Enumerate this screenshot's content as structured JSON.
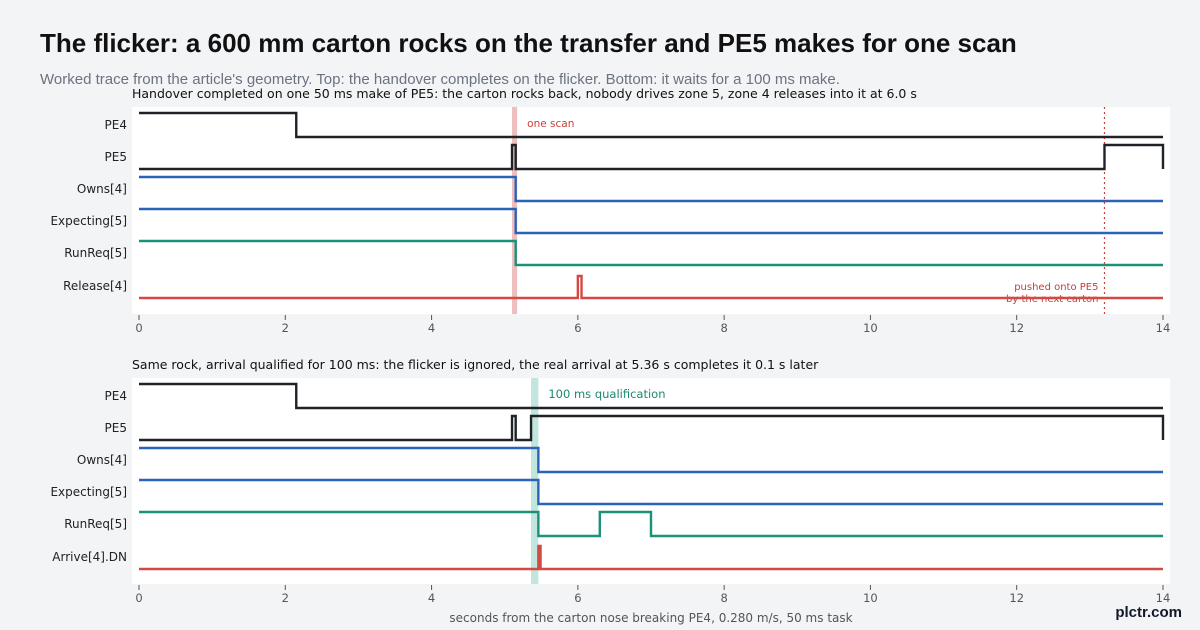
{
  "header": {
    "title": "The flicker: a 600 mm carton rocks on the transfer and PE5 makes for one scan",
    "subtitle": "Worked trace from the article's geometry. Top: the handover completes on the flicker. Bottom: it waits for a 100 ms make."
  },
  "colors": {
    "black": "#1f2328",
    "blue": "#2a64b8",
    "teal": "#1a9178",
    "red": "#d24a43",
    "scan_band": "#e8aaa8",
    "qual_band": "#8fd0c2",
    "annotation_red": "#c8403a",
    "annotation_teal": "#1a8a72"
  },
  "chart_data": [
    {
      "type": "timing",
      "title": "Handover completed on one 50 ms make of PE5: the carton rocks back, nobody drives zone 5, zone 4 releases into it at 6.0 s",
      "xlabel": "",
      "xlim": [
        0,
        14
      ],
      "xticks": [
        0,
        2,
        4,
        6,
        8,
        10,
        12,
        14
      ],
      "signals": [
        {
          "name": "PE4",
          "color": "black",
          "steps": [
            [
              0,
              1
            ],
            [
              2.15,
              0
            ]
          ]
        },
        {
          "name": "PE5",
          "color": "black",
          "steps": [
            [
              0,
              0
            ],
            [
              5.1,
              1
            ],
            [
              5.15,
              0
            ],
            [
              13.2,
              1
            ],
            [
              14,
              0
            ]
          ]
        },
        {
          "name": "Owns[4]",
          "color": "blue",
          "steps": [
            [
              0,
              1
            ],
            [
              5.15,
              0
            ]
          ]
        },
        {
          "name": "Expecting[5]",
          "color": "blue",
          "steps": [
            [
              0,
              1
            ],
            [
              5.15,
              0
            ]
          ]
        },
        {
          "name": "RunReq[5]",
          "color": "teal",
          "steps": [
            [
              0,
              1
            ],
            [
              5.15,
              0
            ]
          ]
        },
        {
          "name": "Release[4]",
          "color": "red",
          "steps": [
            [
              0,
              0
            ],
            [
              6.0,
              1
            ],
            [
              6.05,
              0
            ]
          ]
        }
      ],
      "band": {
        "x0": 5.1,
        "x1": 5.17,
        "label": "one scan"
      },
      "vline": {
        "x": 13.2,
        "label": [
          "pushed onto PE5",
          "by the next carton"
        ]
      }
    },
    {
      "type": "timing",
      "title": "Same rock, arrival qualified for 100 ms: the flicker is ignored, the real arrival at 5.36 s completes it 0.1 s later",
      "xlabel": "seconds from the carton nose breaking PE4, 0.280 m/s, 50 ms task",
      "xlim": [
        0,
        14
      ],
      "xticks": [
        0,
        2,
        4,
        6,
        8,
        10,
        12,
        14
      ],
      "signals": [
        {
          "name": "PE4",
          "color": "black",
          "steps": [
            [
              0,
              1
            ],
            [
              2.15,
              0
            ]
          ]
        },
        {
          "name": "PE5",
          "color": "black",
          "steps": [
            [
              0,
              0
            ],
            [
              5.1,
              1
            ],
            [
              5.15,
              0
            ],
            [
              5.36,
              1
            ],
            [
              14,
              0
            ]
          ]
        },
        {
          "name": "Owns[4]",
          "color": "blue",
          "steps": [
            [
              0,
              1
            ],
            [
              5.46,
              0
            ]
          ]
        },
        {
          "name": "Expecting[5]",
          "color": "blue",
          "steps": [
            [
              0,
              1
            ],
            [
              5.46,
              0
            ]
          ]
        },
        {
          "name": "RunReq[5]",
          "color": "teal",
          "steps": [
            [
              0,
              1
            ],
            [
              5.46,
              0
            ],
            [
              6.3,
              1
            ],
            [
              7.0,
              0
            ]
          ]
        },
        {
          "name": "Arrive[4].DN",
          "color": "red",
          "steps": [
            [
              0,
              0
            ],
            [
              5.46,
              1
            ],
            [
              5.49,
              0
            ]
          ]
        }
      ],
      "band": {
        "x0": 5.36,
        "x1": 5.46,
        "label": "100 ms qualification"
      }
    }
  ],
  "footer": {
    "brand": "plctr.com"
  }
}
